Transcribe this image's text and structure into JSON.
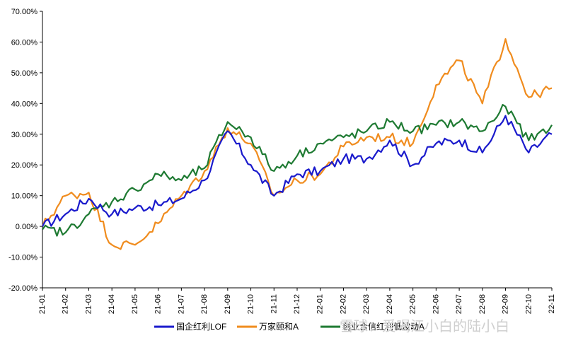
{
  "chart_data": {
    "type": "line",
    "ylim": [
      -20,
      70
    ],
    "yticks": [
      "-20.00%",
      "-10.00%",
      "0.00%",
      "10.00%",
      "20.00%",
      "30.00%",
      "40.00%",
      "50.00%",
      "60.00%",
      "70.00%"
    ],
    "ytick_values": [
      -20,
      -10,
      0,
      10,
      20,
      30,
      40,
      50,
      60,
      70
    ],
    "categories": [
      "21-01",
      "21-02",
      "21-03",
      "21-04",
      "21-05",
      "21-06",
      "21-07",
      "21-08",
      "21-09",
      "21-10",
      "21-11",
      "21-12",
      "22-01",
      "22-02",
      "22-03",
      "22-04",
      "22-05",
      "22-06",
      "22-07",
      "22-08",
      "22-09",
      "22-10",
      "22-11"
    ],
    "grid": false,
    "legend_position": "bottom",
    "series": [
      {
        "name": "国企红利LOF",
        "color": "#1a1acc",
        "values": [
          0,
          4,
          9,
          4,
          6,
          7,
          9,
          15,
          31,
          20,
          10,
          17,
          18,
          22,
          22,
          28,
          20,
          27,
          28,
          24,
          36,
          24,
          30
        ]
      },
      {
        "name": "万家颐和A",
        "color": "#f08c1e",
        "values": [
          0,
          10,
          11,
          -6,
          -6,
          1,
          10,
          18,
          32,
          27,
          10,
          15,
          17,
          26,
          29,
          29,
          27,
          46,
          54,
          40,
          61,
          42,
          45
        ]
      },
      {
        "name": "创业合信红利低波动A",
        "color": "#1e7a32",
        "values": [
          -1,
          -2,
          4,
          8,
          12,
          17,
          15,
          19,
          34,
          29,
          18,
          23,
          27,
          29,
          31,
          34,
          31,
          33,
          34,
          31,
          39,
          28,
          33
        ]
      }
    ]
  },
  "watermark": "雪球：爱喝江小白的陆小白"
}
